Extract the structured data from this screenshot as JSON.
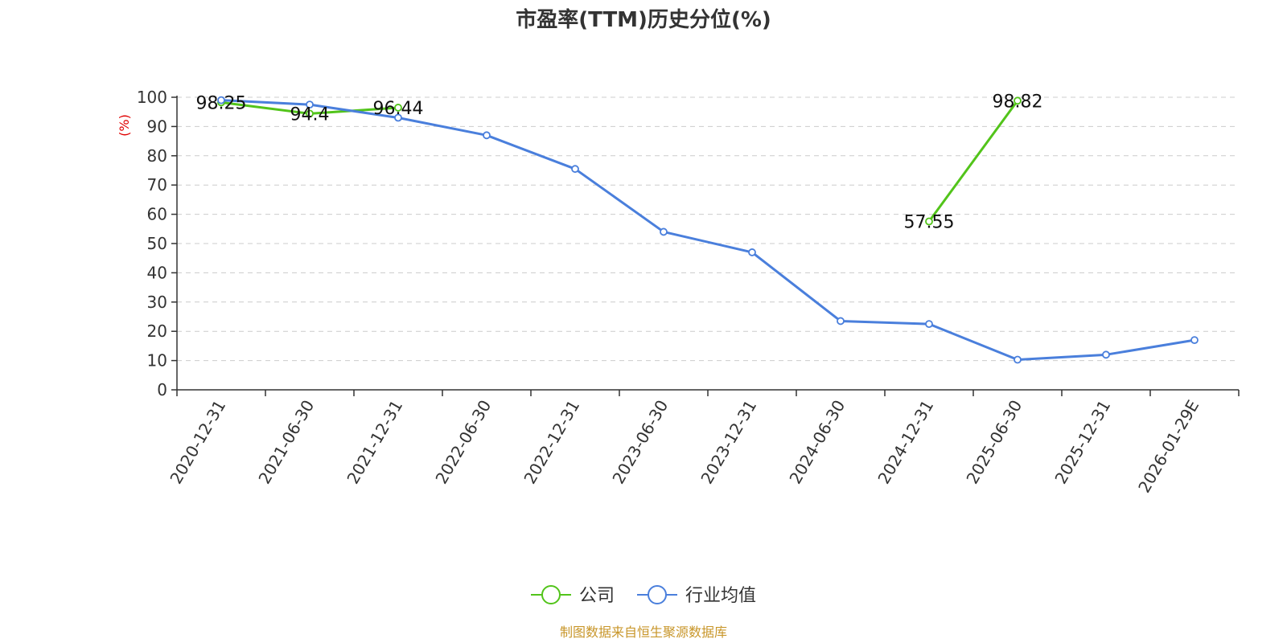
{
  "chart_data": {
    "type": "line",
    "title": "市盈率(TTM)历史分位(%)",
    "ylabel": "(%)",
    "xlabel": "",
    "ylim": [
      0,
      100
    ],
    "yticks": [
      "0",
      "10",
      "20",
      "30",
      "40",
      "50",
      "60",
      "70",
      "80",
      "90",
      "100"
    ],
    "categories": [
      "2020-12-31",
      "2021-06-30",
      "2021-12-31",
      "2022-06-30",
      "2022-12-31",
      "2023-06-30",
      "2023-12-31",
      "2024-06-30",
      "2024-12-31",
      "2025-06-30",
      "2025-12-31",
      "2026-01-29E"
    ],
    "grid": true,
    "legend_position": "bottom-center",
    "series": [
      {
        "name": "公司",
        "color": "#52c41a",
        "values": [
          98.25,
          94.4,
          96.44,
          null,
          null,
          null,
          null,
          null,
          57.55,
          98.82,
          null,
          null
        ],
        "labels": [
          "98.25",
          "94.4",
          "96.44",
          "",
          "",
          "",
          "",
          "",
          "57.55",
          "98.82",
          "",
          ""
        ]
      },
      {
        "name": "行业均值",
        "color": "#4a7fdc",
        "values": [
          99.0,
          97.5,
          93.0,
          87.0,
          75.5,
          54.0,
          47.0,
          23.5,
          22.5,
          10.3,
          12.0,
          17.0
        ]
      }
    ],
    "source": "制图数据来自恒生聚源数据库"
  }
}
